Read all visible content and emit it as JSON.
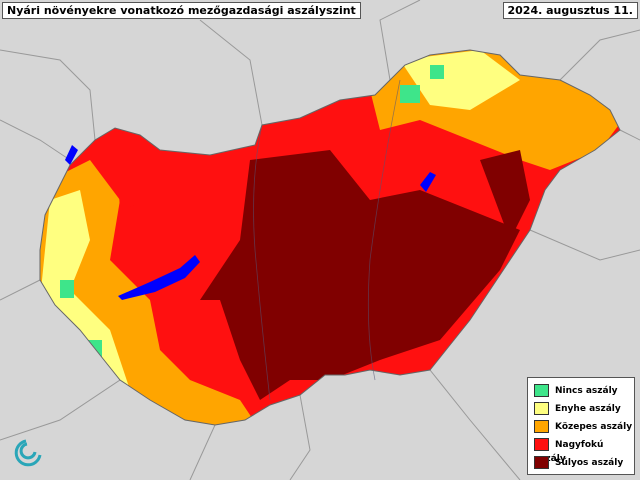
{
  "header": {
    "title": "Nyári növényekre vonatkozó mezőgazdasági aszályszint",
    "date": "2024. augusztus 11."
  },
  "legend": {
    "items": [
      {
        "label": "Nincs aszály",
        "color": "#3ee58a"
      },
      {
        "label": "Enyhe aszály",
        "color": "#ffff80"
      },
      {
        "label": "Közepes aszály",
        "color": "#ffa500"
      },
      {
        "label": "Nagyfokú aszály",
        "color": "#ff1010"
      },
      {
        "label": "Súlyos aszály",
        "color": "#800000"
      }
    ]
  }
}
